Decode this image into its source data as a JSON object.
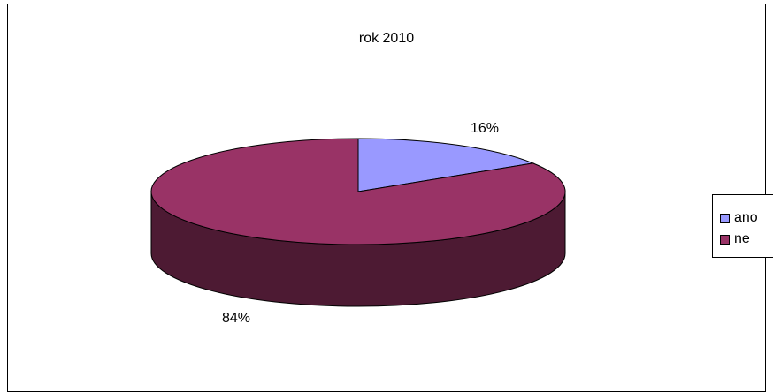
{
  "chart_data": {
    "type": "pie",
    "title": "rok 2010",
    "categories": [
      "ano",
      "ne"
    ],
    "values": [
      16,
      84
    ],
    "data_labels": [
      "16%",
      "84%"
    ],
    "colors": [
      "#9999ff",
      "#993366"
    ],
    "legend_position": "right",
    "style": "3d"
  }
}
